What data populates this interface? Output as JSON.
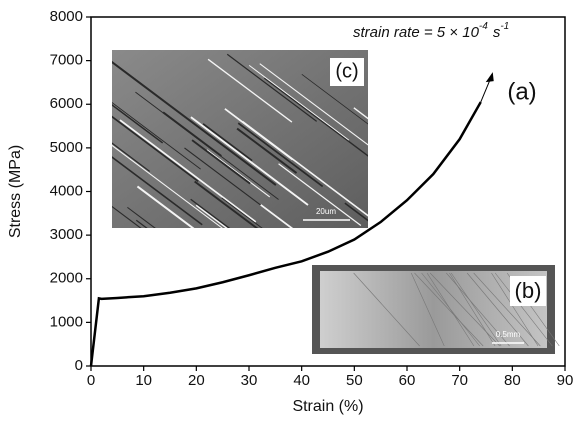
{
  "chart_data": {
    "type": "line",
    "x_label": "Strain (%)",
    "y_label": "Stress (MPa)",
    "x": [
      0,
      1.5,
      2,
      5,
      10,
      15,
      20,
      25,
      30,
      35,
      40,
      45,
      50,
      55,
      60,
      65,
      70,
      74
    ],
    "series": [
      {
        "name": "(a)",
        "color": "#000000",
        "values": [
          0,
          1550,
          1540,
          1560,
          1600,
          1680,
          1780,
          1920,
          2080,
          2250,
          2400,
          2620,
          2900,
          3300,
          3800,
          4400,
          5200,
          6050
        ]
      }
    ],
    "xlim": [
      0,
      90
    ],
    "xticks": [
      0,
      10,
      20,
      30,
      40,
      50,
      60,
      70,
      80,
      90
    ],
    "ylim": [
      0,
      8000
    ],
    "yticks": [
      0,
      1000,
      2000,
      3000,
      4000,
      5000,
      6000,
      7000,
      8000
    ],
    "annotation": {
      "text": "strain rate = 5 × 10",
      "exponent": "-4",
      "unit": "s",
      "unit_exponent": "-1"
    },
    "insets": [
      {
        "label": "(c)",
        "scale_bar": "20um"
      },
      {
        "label": "(b)",
        "scale_bar": "0.5mm"
      }
    ]
  }
}
